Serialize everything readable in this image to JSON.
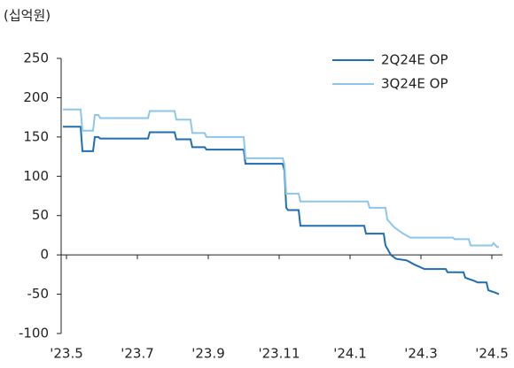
{
  "chart_data": {
    "type": "line",
    "unit_label": "(십억원)",
    "xlim": [
      -0.15,
      12.3
    ],
    "xticks": [
      {
        "value": 0,
        "label": "'23.5"
      },
      {
        "value": 2,
        "label": "'23.7"
      },
      {
        "value": 4,
        "label": "'23.9"
      },
      {
        "value": 6,
        "label": "'23.11"
      },
      {
        "value": 8,
        "label": "'24.1"
      },
      {
        "value": 10,
        "label": "'24.3"
      },
      {
        "value": 12,
        "label": "'24.5"
      }
    ],
    "ylim": [
      -100,
      250
    ],
    "yticks": [
      -100,
      -50,
      0,
      50,
      100,
      150,
      200,
      250
    ],
    "legend": "upper right",
    "series": [
      {
        "name": "2Q24E OP",
        "color": "#1f6db3",
        "x": [
          -0.1,
          0.4,
          0.45,
          0.75,
          0.8,
          0.9,
          0.95,
          2.3,
          2.35,
          3.05,
          3.1,
          3.5,
          3.55,
          3.9,
          3.95,
          5.0,
          5.05,
          6.1,
          6.15,
          6.2,
          6.25,
          6.55,
          6.6,
          8.4,
          8.45,
          8.95,
          9.0,
          9.15,
          9.3,
          9.6,
          9.8,
          10.1,
          10.7,
          10.75,
          11.2,
          11.25,
          11.5,
          11.6,
          11.85,
          11.9,
          12.1,
          12.2
        ],
        "values": [
          163,
          163,
          132,
          132,
          150,
          150,
          148,
          148,
          156,
          156,
          147,
          147,
          137,
          137,
          134,
          134,
          116,
          116,
          107,
          60,
          57,
          57,
          37,
          37,
          27,
          27,
          12,
          0,
          -5,
          -7,
          -12,
          -18,
          -18,
          -22,
          -22,
          -29,
          -33,
          -35,
          -35,
          -45,
          -48,
          -50
        ]
      },
      {
        "name": "3Q24E OP",
        "color": "#8ec6ea",
        "x": [
          -0.1,
          0.4,
          0.45,
          0.75,
          0.8,
          0.9,
          0.95,
          2.3,
          2.35,
          3.05,
          3.1,
          3.5,
          3.55,
          3.9,
          3.95,
          5.0,
          5.05,
          6.1,
          6.15,
          6.2,
          6.55,
          6.6,
          8.5,
          8.55,
          9.0,
          9.05,
          9.25,
          9.5,
          9.7,
          10.9,
          10.95,
          11.35,
          11.4,
          12.0,
          12.05,
          12.15,
          12.2
        ],
        "values": [
          185,
          185,
          158,
          158,
          178,
          178,
          174,
          174,
          183,
          183,
          172,
          172,
          155,
          155,
          150,
          150,
          123,
          123,
          115,
          78,
          78,
          68,
          68,
          60,
          60,
          45,
          35,
          27,
          22,
          22,
          20,
          20,
          12,
          12,
          15,
          10,
          10
        ]
      }
    ]
  }
}
